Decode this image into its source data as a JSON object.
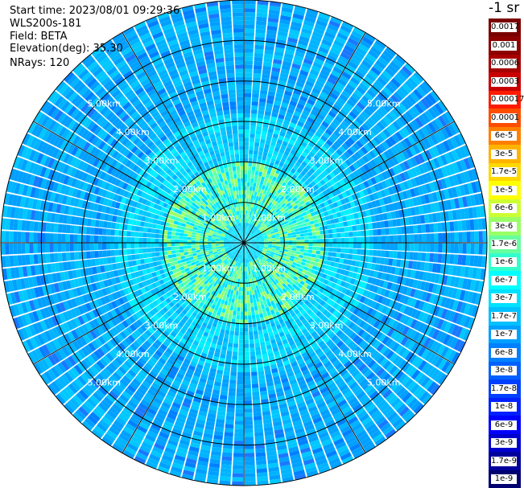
{
  "header": {
    "start_time": "Start time: 2023/08/01 09:29:36",
    "device": "WLS200s-181",
    "field": "Field: BETA",
    "elevation": "Elevation(deg): 35.30",
    "nrays": "NRays: 120"
  },
  "colorbar": {
    "unit_title": "-1 sr",
    "labels": [
      "0.0017",
      "0.001",
      "0.0006",
      "0.0003",
      "0.00017",
      "0.0001",
      "6e-5",
      "3e-5",
      "1.7e-5",
      "1e-5",
      "6e-6",
      "3e-6",
      "1.7e-6",
      "1e-6",
      "6e-7",
      "3e-7",
      "1.7e-7",
      "1e-7",
      "6e-8",
      "3e-8",
      "1.7e-8",
      "1e-8",
      "6e-9",
      "3e-9",
      "1.7e-9",
      "1e-9"
    ],
    "colors": [
      "#7a0000",
      "#8c0000",
      "#a60000",
      "#c80000",
      "#ff1a00",
      "#ff4d00",
      "#ff8000",
      "#ffb300",
      "#ffd800",
      "#ffff00",
      "#ccff33",
      "#99ff66",
      "#66ffa0",
      "#33ffcc",
      "#00ffff",
      "#00e0ff",
      "#00c0ff",
      "#00a0ff",
      "#0080ff",
      "#0060ff",
      "#0040ff",
      "#0020ff",
      "#0000ff",
      "#0000cc",
      "#00009c",
      "#000070"
    ]
  },
  "chart_data": {
    "type": "heatmap",
    "projection": "polar (PPI scan)",
    "field": "BETA",
    "nrays": 120,
    "elevation_deg": 35.3,
    "range_rings_km": [
      1,
      2,
      3,
      4,
      5
    ],
    "ring_labels": [
      "1.00km",
      "2.00km",
      "3.00km",
      "4.00km",
      "5.00km"
    ],
    "max_range_km": 6,
    "spoke_count": 12,
    "value_pattern": {
      "inner_range_km": [
        0.5,
        2.0
      ],
      "inner_value_approx": "3e-6 to 1e-6",
      "outer_value_approx": "1.7e-7 to 6e-8"
    }
  }
}
